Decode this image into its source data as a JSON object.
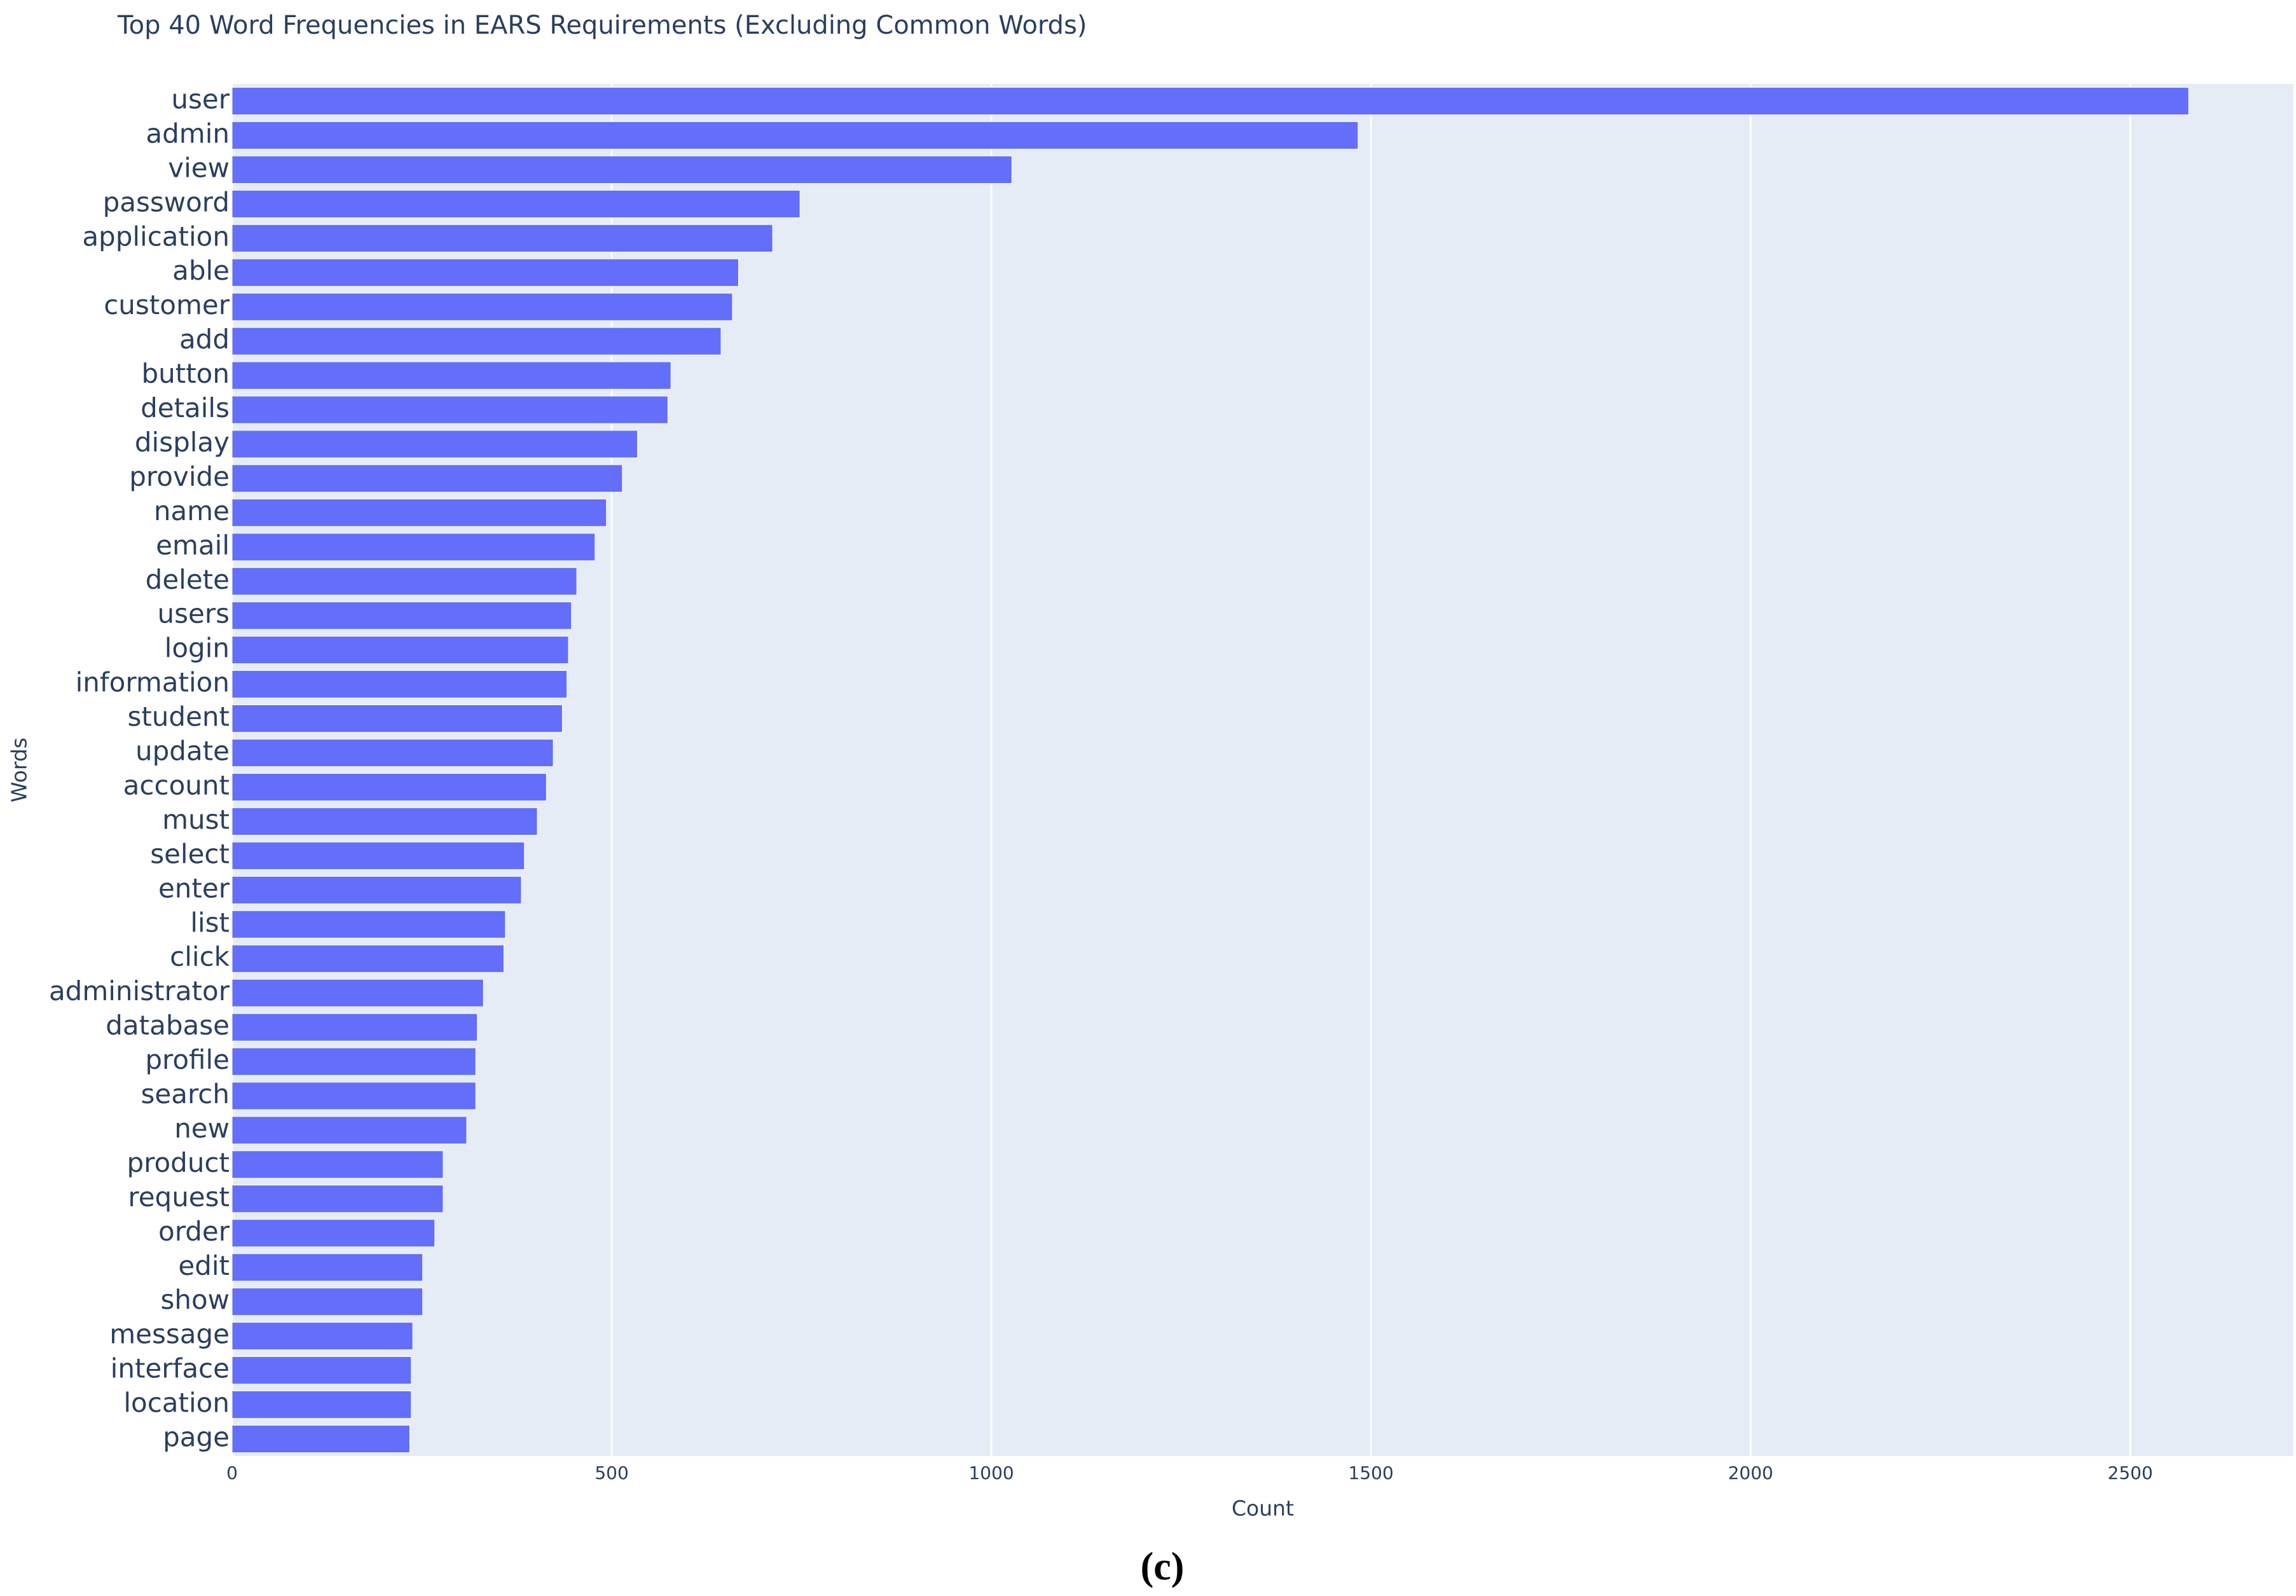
{
  "chart_data": {
    "type": "bar",
    "orientation": "horizontal",
    "title": "Top 40 Word Frequencies in EARS Requirements (Excluding Common Words)",
    "x_label": "Count",
    "y_label": "Words",
    "categories": [
      "user",
      "admin",
      "view",
      "password",
      "application",
      "able",
      "customer",
      "add",
      "button",
      "details",
      "display",
      "provide",
      "name",
      "email",
      "delete",
      "users",
      "login",
      "information",
      "student",
      "update",
      "account",
      "must",
      "select",
      "enter",
      "list",
      "click",
      "administrator",
      "database",
      "profile",
      "search",
      "new",
      "product",
      "request",
      "order",
      "edit",
      "show",
      "message",
      "interface",
      "location",
      "page"
    ],
    "values": [
      2577,
      1483,
      1027,
      748,
      712,
      667,
      659,
      644,
      578,
      574,
      534,
      514,
      493,
      478,
      454,
      447,
      443,
      441,
      435,
      423,
      414,
      402,
      385,
      381,
      360,
      358,
      331,
      323,
      321,
      321,
      309,
      278,
      278,
      267,
      251,
      251,
      238,
      236,
      236,
      234
    ],
    "color": "#636efa",
    "xlim": [
      0,
      2715
    ],
    "xticks": [
      0,
      500,
      1000,
      1500,
      2000,
      2500
    ],
    "grid": true
  },
  "caption": "(c)"
}
